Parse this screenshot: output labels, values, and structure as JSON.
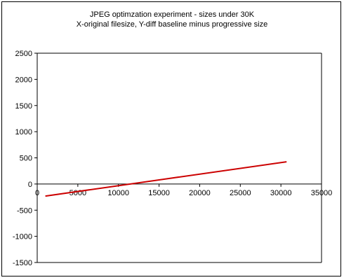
{
  "chart_data": {
    "type": "line",
    "title": "JPEG optimzation experiment - sizes under 30K",
    "subtitle": "X-original filesize, Y-diff baseline minus progressive size",
    "xlim": [
      0,
      35000
    ],
    "ylim": [
      -1500,
      2500
    ],
    "x_ticks": [
      "0",
      "5000",
      "10000",
      "15000",
      "20000",
      "25000",
      "30000",
      "35000"
    ],
    "y_ticks": [
      "2500",
      "2000",
      "1500",
      "1000",
      "500",
      "0",
      "-500",
      "-1000",
      "-1500"
    ],
    "x_tick_values": [
      0,
      5000,
      10000,
      15000,
      20000,
      25000,
      30000,
      35000
    ],
    "y_tick_values": [
      2500,
      2000,
      1500,
      1000,
      500,
      0,
      -500,
      -1000,
      -1500
    ],
    "grid": false,
    "legend": "none",
    "line_color": "#cc0000",
    "series": [
      {
        "x": [
          1000,
          30700
        ],
        "y": [
          -230,
          425
        ]
      }
    ]
  }
}
